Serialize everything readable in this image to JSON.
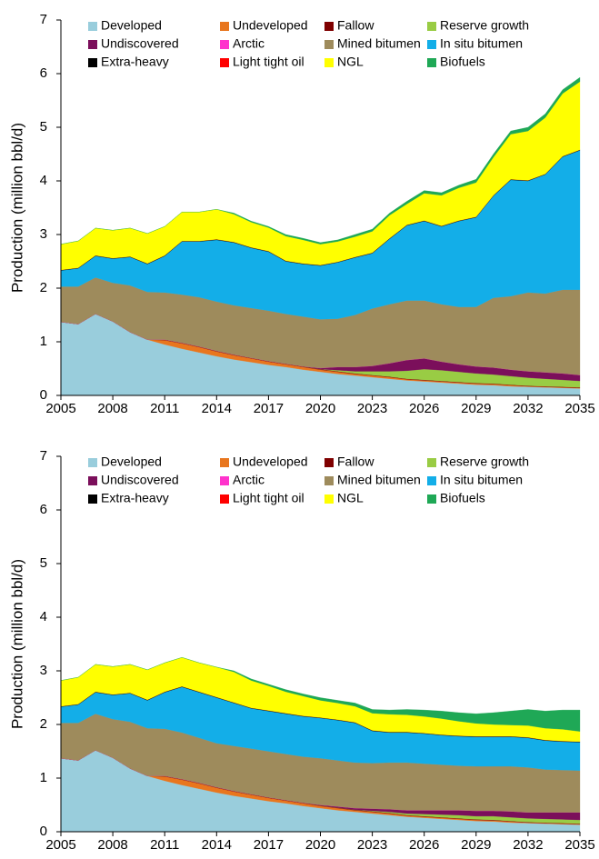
{
  "chart_data": [
    {
      "type": "stacked_area",
      "x_label": null,
      "y_label": "Production (million bbl/d)",
      "x": [
        2005,
        2006,
        2007,
        2008,
        2009,
        2010,
        2011,
        2012,
        2013,
        2014,
        2015,
        2016,
        2017,
        2018,
        2019,
        2020,
        2021,
        2022,
        2023,
        2024,
        2025,
        2026,
        2027,
        2028,
        2029,
        2030,
        2031,
        2032,
        2033,
        2034,
        2035
      ],
      "xlim": [
        2005,
        2035
      ],
      "xticks": [
        2005,
        2008,
        2011,
        2014,
        2017,
        2020,
        2023,
        2026,
        2029,
        2032,
        2035
      ],
      "ylim": [
        0,
        7
      ],
      "yticks": [
        0,
        1,
        2,
        3,
        4,
        5,
        6,
        7
      ],
      "grid": false,
      "legend": "upper left",
      "series": [
        {
          "name": "Developed",
          "color": "#99cddc",
          "values": [
            1.37,
            1.33,
            1.52,
            1.38,
            1.18,
            1.04,
            0.95,
            0.87,
            0.8,
            0.73,
            0.67,
            0.62,
            0.57,
            0.53,
            0.48,
            0.44,
            0.4,
            0.37,
            0.34,
            0.31,
            0.28,
            0.26,
            0.24,
            0.22,
            0.2,
            0.19,
            0.17,
            0.16,
            0.15,
            0.14,
            0.13
          ]
        },
        {
          "name": "Undeveloped",
          "color": "#e8761e",
          "values": [
            0,
            0,
            0,
            0,
            0,
            0,
            0.08,
            0.1,
            0.1,
            0.09,
            0.08,
            0.07,
            0.06,
            0.05,
            0.05,
            0.04,
            0.04,
            0.03,
            0.03,
            0.03,
            0.02,
            0.02,
            0.02,
            0.02,
            0.02,
            0.02,
            0.02,
            0.01,
            0.01,
            0.01,
            0.01
          ]
        },
        {
          "name": "Fallow",
          "color": "#7f0000",
          "values": [
            0,
            0,
            0,
            0,
            0,
            0,
            0.01,
            0.01,
            0.01,
            0.01,
            0.01,
            0.01,
            0.01,
            0.01,
            0.01,
            0.01,
            0.01,
            0.01,
            0.01,
            0.01,
            0.01,
            0.01,
            0.01,
            0.01,
            0.01,
            0.01,
            0.01,
            0.01,
            0.01,
            0.01,
            0.01
          ]
        },
        {
          "name": "Reserve growth",
          "color": "#99cc44",
          "values": [
            0,
            0,
            0,
            0,
            0,
            0,
            0,
            0,
            0,
            0,
            0,
            0,
            0,
            0,
            0,
            0,
            0.02,
            0.04,
            0.07,
            0.1,
            0.15,
            0.2,
            0.2,
            0.19,
            0.18,
            0.17,
            0.16,
            0.15,
            0.14,
            0.13,
            0.12
          ]
        },
        {
          "name": "Undiscovered",
          "color": "#7b0f5b",
          "values": [
            0,
            0,
            0,
            0,
            0,
            0,
            0,
            0,
            0,
            0,
            0,
            0,
            0,
            0,
            0,
            0.02,
            0.06,
            0.08,
            0.1,
            0.15,
            0.2,
            0.2,
            0.16,
            0.14,
            0.13,
            0.13,
            0.12,
            0.12,
            0.12,
            0.12,
            0.11
          ]
        },
        {
          "name": "Arctic",
          "color": "#ff33cc",
          "values": [
            0,
            0,
            0,
            0,
            0,
            0,
            0,
            0,
            0,
            0,
            0,
            0,
            0,
            0,
            0,
            0,
            0,
            0,
            0,
            0,
            0,
            0,
            0,
            0,
            0,
            0,
            0,
            0,
            0,
            0,
            0
          ]
        },
        {
          "name": "Mined bitumen",
          "color": "#9e8b5c",
          "values": [
            0.66,
            0.7,
            0.68,
            0.72,
            0.87,
            0.89,
            0.88,
            0.9,
            0.92,
            0.92,
            0.92,
            0.93,
            0.94,
            0.93,
            0.93,
            0.91,
            0.9,
            0.97,
            1.07,
            1.1,
            1.11,
            1.08,
            1.07,
            1.07,
            1.11,
            1.3,
            1.37,
            1.47,
            1.47,
            1.56,
            1.59
          ]
        },
        {
          "name": "In situ bitumen",
          "color": "#13aee8",
          "values": [
            0.3,
            0.34,
            0.4,
            0.45,
            0.53,
            0.52,
            0.68,
            0.99,
            1.04,
            1.15,
            1.17,
            1.12,
            1.1,
            0.98,
            0.98,
            1.0,
            1.05,
            1.07,
            1.03,
            1.22,
            1.4,
            1.48,
            1.45,
            1.6,
            1.67,
            1.9,
            2.17,
            2.08,
            2.22,
            2.48,
            2.6
          ]
        },
        {
          "name": "Extra-heavy",
          "color": "#000000",
          "values": [
            0.01,
            0.01,
            0.01,
            0.01,
            0.01,
            0.01,
            0.01,
            0.01,
            0.01,
            0.01,
            0.01,
            0.01,
            0.01,
            0.01,
            0.01,
            0.01,
            0.01,
            0.01,
            0.01,
            0.01,
            0.01,
            0.01,
            0.01,
            0.01,
            0.01,
            0.01,
            0.01,
            0.01,
            0.01,
            0.01,
            0.01
          ]
        },
        {
          "name": "Light tight oil",
          "color": "#ff0000",
          "values": [
            0,
            0,
            0,
            0,
            0,
            0,
            0,
            0,
            0,
            0,
            0,
            0,
            0,
            0,
            0,
            0,
            0,
            0,
            0,
            0,
            0,
            0,
            0,
            0,
            0,
            0,
            0,
            0,
            0,
            0,
            0
          ]
        },
        {
          "name": "NGL",
          "color": "#ffff00",
          "values": [
            0.48,
            0.5,
            0.51,
            0.52,
            0.53,
            0.56,
            0.54,
            0.54,
            0.54,
            0.56,
            0.52,
            0.47,
            0.44,
            0.46,
            0.44,
            0.39,
            0.38,
            0.38,
            0.4,
            0.43,
            0.39,
            0.51,
            0.57,
            0.61,
            0.64,
            0.71,
            0.84,
            0.92,
            1.05,
            1.17,
            1.27
          ]
        },
        {
          "name": "Biofuels",
          "color": "#1fa856",
          "values": [
            0,
            0,
            0,
            0,
            0,
            0,
            0,
            0,
            0,
            0,
            0.02,
            0.02,
            0.02,
            0.03,
            0.03,
            0.03,
            0.03,
            0.04,
            0.04,
            0.04,
            0.05,
            0.05,
            0.05,
            0.05,
            0.06,
            0.06,
            0.06,
            0.07,
            0.07,
            0.07,
            0.08
          ]
        }
      ]
    },
    {
      "type": "stacked_area",
      "y_label": "Production (million bbl/d)",
      "x": [
        2005,
        2006,
        2007,
        2008,
        2009,
        2010,
        2011,
        2012,
        2013,
        2014,
        2015,
        2016,
        2017,
        2018,
        2019,
        2020,
        2021,
        2022,
        2023,
        2024,
        2025,
        2026,
        2027,
        2028,
        2029,
        2030,
        2031,
        2032,
        2033,
        2034,
        2035
      ],
      "xlim": [
        2005,
        2035
      ],
      "xticks": [
        2005,
        2008,
        2011,
        2014,
        2017,
        2020,
        2023,
        2026,
        2029,
        2032,
        2035
      ],
      "ylim": [
        0,
        7
      ],
      "yticks": [
        0,
        1,
        2,
        3,
        4,
        5,
        6,
        7
      ],
      "grid": false,
      "legend": "upper left",
      "series": [
        {
          "name": "Developed",
          "color": "#99cddc",
          "values": [
            1.37,
            1.33,
            1.52,
            1.38,
            1.18,
            1.04,
            0.95,
            0.87,
            0.8,
            0.73,
            0.67,
            0.62,
            0.57,
            0.53,
            0.48,
            0.44,
            0.4,
            0.37,
            0.34,
            0.31,
            0.28,
            0.26,
            0.24,
            0.22,
            0.2,
            0.19,
            0.17,
            0.16,
            0.15,
            0.14,
            0.13
          ]
        },
        {
          "name": "Undeveloped",
          "color": "#e8761e",
          "values": [
            0,
            0,
            0,
            0,
            0,
            0,
            0.08,
            0.1,
            0.1,
            0.09,
            0.08,
            0.07,
            0.06,
            0.05,
            0.05,
            0.04,
            0.04,
            0.03,
            0.03,
            0.03,
            0.02,
            0.02,
            0.02,
            0.02,
            0.02,
            0.02,
            0.02,
            0.01,
            0.01,
            0.01,
            0.01
          ]
        },
        {
          "name": "Fallow",
          "color": "#7f0000",
          "values": [
            0,
            0,
            0,
            0,
            0,
            0,
            0.01,
            0.01,
            0.01,
            0.01,
            0.01,
            0.01,
            0.01,
            0.01,
            0.01,
            0.01,
            0.01,
            0.01,
            0.01,
            0.01,
            0.01,
            0.01,
            0.01,
            0.01,
            0.01,
            0.01,
            0.01,
            0.01,
            0.01,
            0.01,
            0.01
          ]
        },
        {
          "name": "Reserve growth",
          "color": "#99cc44",
          "values": [
            0,
            0,
            0,
            0,
            0,
            0,
            0,
            0,
            0,
            0,
            0,
            0,
            0,
            0,
            0,
            0,
            0,
            0,
            0.01,
            0.02,
            0.03,
            0.04,
            0.05,
            0.06,
            0.06,
            0.07,
            0.07,
            0.07,
            0.07,
            0.07,
            0.07
          ]
        },
        {
          "name": "Undiscovered",
          "color": "#7b0f5b",
          "values": [
            0,
            0,
            0,
            0,
            0,
            0,
            0,
            0,
            0,
            0,
            0,
            0,
            0,
            0,
            0,
            0.01,
            0.02,
            0.03,
            0.04,
            0.05,
            0.06,
            0.07,
            0.08,
            0.09,
            0.1,
            0.1,
            0.11,
            0.11,
            0.12,
            0.13,
            0.14
          ]
        },
        {
          "name": "Arctic",
          "color": "#ff33cc",
          "values": [
            0,
            0,
            0,
            0,
            0,
            0,
            0,
            0,
            0,
            0,
            0,
            0,
            0,
            0,
            0,
            0,
            0,
            0,
            0,
            0,
            0,
            0,
            0,
            0,
            0,
            0,
            0,
            0,
            0,
            0,
            0
          ]
        },
        {
          "name": "Mined bitumen",
          "color": "#9e8b5c",
          "values": [
            0.66,
            0.7,
            0.68,
            0.72,
            0.87,
            0.89,
            0.88,
            0.87,
            0.84,
            0.82,
            0.84,
            0.85,
            0.86,
            0.86,
            0.86,
            0.87,
            0.86,
            0.85,
            0.85,
            0.87,
            0.89,
            0.87,
            0.85,
            0.83,
            0.83,
            0.83,
            0.84,
            0.84,
            0.8,
            0.79,
            0.78
          ]
        },
        {
          "name": "In situ bitumen",
          "color": "#13aee8",
          "values": [
            0.3,
            0.34,
            0.4,
            0.45,
            0.53,
            0.52,
            0.68,
            0.85,
            0.85,
            0.85,
            0.8,
            0.75,
            0.75,
            0.75,
            0.75,
            0.75,
            0.75,
            0.74,
            0.6,
            0.56,
            0.56,
            0.56,
            0.55,
            0.55,
            0.55,
            0.55,
            0.55,
            0.55,
            0.54,
            0.53,
            0.53
          ]
        },
        {
          "name": "Extra-heavy",
          "color": "#000000",
          "values": [
            0.01,
            0.01,
            0.01,
            0.01,
            0.01,
            0.01,
            0.01,
            0.01,
            0.01,
            0.01,
            0.01,
            0.01,
            0.01,
            0.01,
            0.01,
            0.01,
            0.01,
            0.01,
            0.01,
            0.01,
            0.01,
            0.01,
            0.01,
            0.01,
            0.01,
            0.01,
            0.01,
            0.01,
            0.01,
            0.01,
            0.01
          ]
        },
        {
          "name": "Light tight oil",
          "color": "#ff0000",
          "values": [
            0,
            0,
            0,
            0,
            0,
            0,
            0,
            0,
            0,
            0,
            0,
            0,
            0,
            0,
            0,
            0,
            0,
            0,
            0,
            0,
            0,
            0,
            0,
            0,
            0,
            0,
            0,
            0,
            0,
            0,
            0
          ]
        },
        {
          "name": "NGL",
          "color": "#ffff00",
          "values": [
            0.48,
            0.5,
            0.51,
            0.52,
            0.53,
            0.56,
            0.54,
            0.54,
            0.54,
            0.56,
            0.57,
            0.51,
            0.46,
            0.4,
            0.37,
            0.32,
            0.31,
            0.3,
            0.32,
            0.33,
            0.32,
            0.31,
            0.3,
            0.27,
            0.24,
            0.22,
            0.21,
            0.22,
            0.22,
            0.22,
            0.19
          ]
        },
        {
          "name": "Biofuels",
          "color": "#1fa856",
          "values": [
            0,
            0,
            0,
            0,
            0,
            0,
            0,
            0,
            0,
            0,
            0.02,
            0.03,
            0.03,
            0.04,
            0.04,
            0.05,
            0.05,
            0.06,
            0.07,
            0.08,
            0.1,
            0.12,
            0.14,
            0.16,
            0.18,
            0.22,
            0.26,
            0.3,
            0.32,
            0.36,
            0.4
          ]
        }
      ]
    }
  ]
}
